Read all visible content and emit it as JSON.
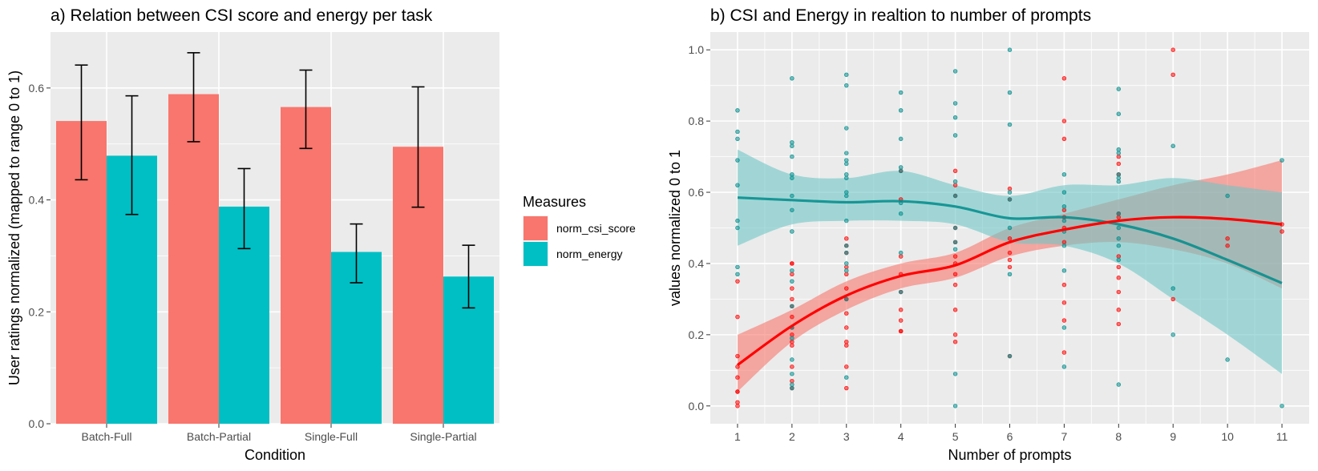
{
  "chart_data": [
    {
      "type": "bar",
      "title": "a) Relation between CSI score and energy per task",
      "xlabel": "Condition",
      "ylabel": "User ratings normalized (mapped to range 0 to 1)",
      "ylim": [
        0,
        0.7
      ],
      "yticks": [
        0.0,
        0.2,
        0.4,
        0.6
      ],
      "ytick_labels": [
        "0.0",
        "0.2",
        "0.4",
        "0.6"
      ],
      "categories": [
        "Batch-Full",
        "Batch-Partial",
        "Single-Full",
        "Single-Partial"
      ],
      "series": [
        {
          "name": "norm_csi_score",
          "color": "#F8766D",
          "values": [
            0.541,
            0.589,
            0.566,
            0.495
          ],
          "err_low": [
            0.436,
            0.504,
            0.492,
            0.387
          ],
          "err_high": [
            0.641,
            0.663,
            0.632,
            0.602
          ]
        },
        {
          "name": "norm_energy",
          "color": "#00BFC4",
          "values": [
            0.479,
            0.388,
            0.307,
            0.263
          ],
          "err_low": [
            0.374,
            0.313,
            0.252,
            0.207
          ],
          "err_high": [
            0.586,
            0.456,
            0.357,
            0.319
          ]
        }
      ],
      "legend": {
        "title": "Measures",
        "position": "right",
        "entries": [
          "norm_csi_score",
          "norm_energy"
        ]
      },
      "grid": true
    },
    {
      "type": "scatter",
      "title": "b) CSI and Energy in realtion to number of prompts",
      "xlabel": "Number of prompts",
      "ylabel": "values normalized 0 to 1",
      "xlim": [
        0.5,
        11.5
      ],
      "ylim": [
        -0.05,
        1.05
      ],
      "xticks": [
        1,
        2,
        3,
        4,
        5,
        6,
        7,
        8,
        9,
        10,
        11
      ],
      "xtick_labels": [
        "1",
        "2",
        "3",
        "4",
        "5",
        "6",
        "7",
        "8",
        "9",
        "10",
        "11"
      ],
      "yticks": [
        0.0,
        0.2,
        0.4,
        0.6,
        0.8,
        1.0
      ],
      "ytick_labels": [
        "0.0",
        "0.2",
        "0.4",
        "0.6",
        "0.8",
        "1.0"
      ],
      "grid": true,
      "series": [
        {
          "name": "csi",
          "color": "#FF0000",
          "points": [
            [
              1,
              0.0
            ],
            [
              1,
              0.01
            ],
            [
              1,
              0.04
            ],
            [
              1,
              0.04
            ],
            [
              1,
              0.08
            ],
            [
              1,
              0.11
            ],
            [
              1,
              0.14
            ],
            [
              1,
              0.25
            ],
            [
              1,
              0.35
            ],
            [
              2,
              0.05
            ],
            [
              2,
              0.07
            ],
            [
              2,
              0.11
            ],
            [
              2,
              0.17
            ],
            [
              2,
              0.18
            ],
            [
              2,
              0.2
            ],
            [
              2,
              0.22
            ],
            [
              2,
              0.25
            ],
            [
              2,
              0.28
            ],
            [
              2,
              0.3
            ],
            [
              2,
              0.33
            ],
            [
              2,
              0.37
            ],
            [
              2,
              0.4
            ],
            [
              2,
              0.4
            ],
            [
              3,
              0.05
            ],
            [
              3,
              0.11
            ],
            [
              3,
              0.17
            ],
            [
              3,
              0.18
            ],
            [
              3,
              0.22
            ],
            [
              3,
              0.26
            ],
            [
              3,
              0.3
            ],
            [
              3,
              0.33
            ],
            [
              3,
              0.37
            ],
            [
              3,
              0.39
            ],
            [
              3,
              0.43
            ],
            [
              3,
              0.45
            ],
            [
              3,
              0.47
            ],
            [
              4,
              0.21
            ],
            [
              4,
              0.21
            ],
            [
              4,
              0.24
            ],
            [
              4,
              0.27
            ],
            [
              4,
              0.32
            ],
            [
              4,
              0.37
            ],
            [
              4,
              0.42
            ],
            [
              4,
              0.58
            ],
            [
              4,
              0.66
            ],
            [
              5,
              0.18
            ],
            [
              5,
              0.2
            ],
            [
              5,
              0.27
            ],
            [
              5,
              0.34
            ],
            [
              5,
              0.37
            ],
            [
              5,
              0.4
            ],
            [
              5,
              0.42
            ],
            [
              5,
              0.46
            ],
            [
              5,
              0.5
            ],
            [
              5,
              0.59
            ],
            [
              5,
              0.62
            ],
            [
              5,
              0.66
            ],
            [
              6,
              0.14
            ],
            [
              6,
              0.39
            ],
            [
              6,
              0.41
            ],
            [
              6,
              0.43
            ],
            [
              6,
              0.47
            ],
            [
              6,
              0.58
            ],
            [
              6,
              0.61
            ],
            [
              7,
              0.15
            ],
            [
              7,
              0.24
            ],
            [
              7,
              0.29
            ],
            [
              7,
              0.34
            ],
            [
              7,
              0.46
            ],
            [
              7,
              0.5
            ],
            [
              7,
              0.53
            ],
            [
              7,
              0.55
            ],
            [
              7,
              0.75
            ],
            [
              7,
              0.8
            ],
            [
              7,
              0.92
            ],
            [
              8,
              0.23
            ],
            [
              8,
              0.27
            ],
            [
              8,
              0.32
            ],
            [
              8,
              0.36
            ],
            [
              8,
              0.39
            ],
            [
              8,
              0.42
            ],
            [
              8,
              0.53
            ],
            [
              8,
              0.54
            ],
            [
              8,
              0.65
            ],
            [
              8,
              0.68
            ],
            [
              8,
              0.7
            ],
            [
              9,
              0.3
            ],
            [
              9,
              0.93
            ],
            [
              9,
              1.0
            ],
            [
              10,
              0.45
            ],
            [
              10,
              0.47
            ],
            [
              11,
              0.49
            ],
            [
              11,
              0.51
            ]
          ],
          "smooth_x": [
            1,
            2,
            3,
            4,
            5,
            6,
            7,
            8,
            9,
            10,
            11
          ],
          "smooth_y": [
            0.115,
            0.225,
            0.31,
            0.365,
            0.395,
            0.46,
            0.495,
            0.52,
            0.53,
            0.525,
            0.51
          ],
          "ci_low": [
            0.04,
            0.18,
            0.27,
            0.33,
            0.36,
            0.42,
            0.45,
            0.46,
            0.44,
            0.4,
            0.33
          ],
          "ci_high": [
            0.2,
            0.27,
            0.35,
            0.4,
            0.43,
            0.5,
            0.54,
            0.58,
            0.62,
            0.65,
            0.69
          ]
        },
        {
          "name": "energy",
          "color": "#008B8B",
          "points": [
            [
              1,
              0.37
            ],
            [
              1,
              0.39
            ],
            [
              1,
              0.5
            ],
            [
              1,
              0.52
            ],
            [
              1,
              0.62
            ],
            [
              1,
              0.69
            ],
            [
              1,
              0.75
            ],
            [
              1,
              0.77
            ],
            [
              1,
              0.83
            ],
            [
              2,
              0.05
            ],
            [
              2,
              0.06
            ],
            [
              2,
              0.09
            ],
            [
              2,
              0.13
            ],
            [
              2,
              0.19
            ],
            [
              2,
              0.22
            ],
            [
              2,
              0.28
            ],
            [
              2,
              0.35
            ],
            [
              2,
              0.38
            ],
            [
              2,
              0.49
            ],
            [
              2,
              0.55
            ],
            [
              2,
              0.59
            ],
            [
              2,
              0.64
            ],
            [
              2,
              0.65
            ],
            [
              2,
              0.7
            ],
            [
              2,
              0.73
            ],
            [
              2,
              0.74
            ],
            [
              2,
              0.92
            ],
            [
              3,
              0.08
            ],
            [
              3,
              0.3
            ],
            [
              3,
              0.38
            ],
            [
              3,
              0.4
            ],
            [
              3,
              0.43
            ],
            [
              3,
              0.45
            ],
            [
              3,
              0.52
            ],
            [
              3,
              0.59
            ],
            [
              3,
              0.6
            ],
            [
              3,
              0.64
            ],
            [
              3,
              0.65
            ],
            [
              3,
              0.68
            ],
            [
              3,
              0.69
            ],
            [
              3,
              0.71
            ],
            [
              3,
              0.78
            ],
            [
              3,
              0.9
            ],
            [
              3,
              0.93
            ],
            [
              4,
              0.32
            ],
            [
              4,
              0.43
            ],
            [
              4,
              0.54
            ],
            [
              4,
              0.57
            ],
            [
              4,
              0.66
            ],
            [
              4,
              0.67
            ],
            [
              4,
              0.75
            ],
            [
              4,
              0.83
            ],
            [
              4,
              0.88
            ],
            [
              5,
              0.0
            ],
            [
              5,
              0.09
            ],
            [
              5,
              0.44
            ],
            [
              5,
              0.46
            ],
            [
              5,
              0.5
            ],
            [
              5,
              0.59
            ],
            [
              5,
              0.63
            ],
            [
              5,
              0.76
            ],
            [
              5,
              0.81
            ],
            [
              5,
              0.85
            ],
            [
              5,
              0.94
            ],
            [
              6,
              0.14
            ],
            [
              6,
              0.37
            ],
            [
              6,
              0.5
            ],
            [
              6,
              0.58
            ],
            [
              6,
              0.6
            ],
            [
              6,
              0.79
            ],
            [
              6,
              0.88
            ],
            [
              6,
              1.0
            ],
            [
              7,
              0.11
            ],
            [
              7,
              0.22
            ],
            [
              7,
              0.38
            ],
            [
              7,
              0.45
            ],
            [
              7,
              0.49
            ],
            [
              7,
              0.52
            ],
            [
              7,
              0.56
            ],
            [
              7,
              0.6
            ],
            [
              7,
              0.65
            ],
            [
              8,
              0.06
            ],
            [
              8,
              0.41
            ],
            [
              8,
              0.45
            ],
            [
              8,
              0.47
            ],
            [
              8,
              0.5
            ],
            [
              8,
              0.54
            ],
            [
              8,
              0.63
            ],
            [
              8,
              0.64
            ],
            [
              8,
              0.65
            ],
            [
              8,
              0.71
            ],
            [
              8,
              0.72
            ],
            [
              8,
              0.82
            ],
            [
              8,
              0.89
            ],
            [
              9,
              0.2
            ],
            [
              9,
              0.33
            ],
            [
              9,
              0.73
            ],
            [
              10,
              0.13
            ],
            [
              10,
              0.59
            ],
            [
              11,
              0.0
            ],
            [
              11,
              0.69
            ]
          ],
          "smooth_x": [
            1,
            2,
            3,
            4,
            5,
            6,
            7,
            8,
            9,
            10,
            11
          ],
          "smooth_y": [
            0.585,
            0.578,
            0.572,
            0.575,
            0.56,
            0.527,
            0.53,
            0.51,
            0.47,
            0.41,
            0.345
          ],
          "ci_low": [
            0.45,
            0.51,
            0.52,
            0.52,
            0.51,
            0.46,
            0.45,
            0.4,
            0.3,
            0.2,
            0.09
          ],
          "ci_high": [
            0.72,
            0.65,
            0.64,
            0.66,
            0.62,
            0.59,
            0.62,
            0.62,
            0.64,
            0.62,
            0.6
          ]
        }
      ]
    }
  ]
}
